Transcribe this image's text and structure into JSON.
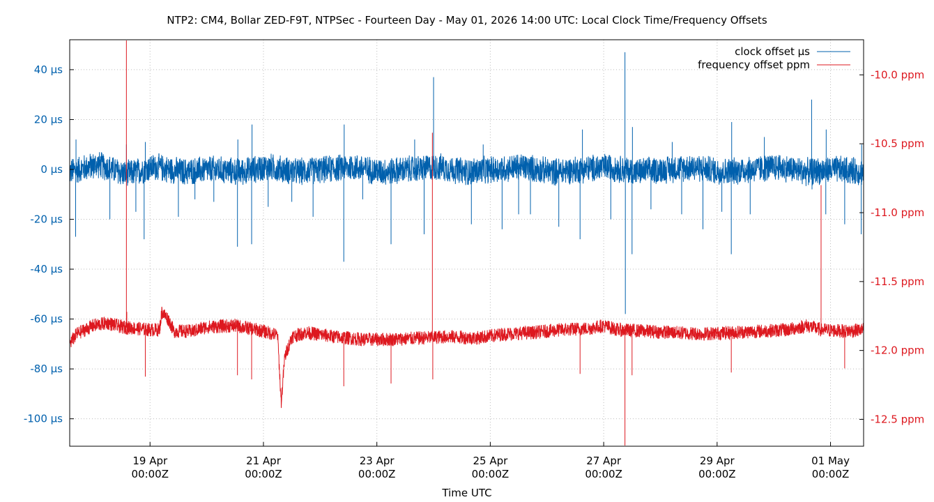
{
  "chart_data": {
    "type": "line",
    "title": "NTP2: CM4, Bollar ZED-F9T, NTPSec - Fourteen Day - May 01, 2026 14:00 UTC: Local Clock Time/Frequency Offsets",
    "xlabel": "Time UTC",
    "x_range": [
      "2026-04-17T14:00Z",
      "2026-05-01T14:00Z"
    ],
    "x_ticks": [
      {
        "date": "2026-04-19T00:00Z",
        "line1": "19 Apr",
        "line2": "00:00Z"
      },
      {
        "date": "2026-04-21T00:00Z",
        "line1": "21 Apr",
        "line2": "00:00Z"
      },
      {
        "date": "2026-04-23T00:00Z",
        "line1": "23 Apr",
        "line2": "00:00Z"
      },
      {
        "date": "2026-04-25T00:00Z",
        "line1": "25 Apr",
        "line2": "00:00Z"
      },
      {
        "date": "2026-04-27T00:00Z",
        "line1": "27 Apr",
        "line2": "00:00Z"
      },
      {
        "date": "2026-04-29T00:00Z",
        "line1": "29 Apr",
        "line2": "00:00Z"
      },
      {
        "date": "2026-05-01T00:00Z",
        "line1": "01 May",
        "line2": "00:00Z"
      }
    ],
    "y_left": {
      "range": [
        -111,
        52
      ],
      "ticks": [
        40,
        20,
        0,
        -20,
        -40,
        -60,
        -80,
        -100
      ],
      "tick_labels": [
        "40 µs",
        "20 µs",
        "0 µs",
        "-20 µs",
        "-40 µs",
        "-60 µs",
        "-80 µs",
        "-100 µs"
      ]
    },
    "y_right": {
      "range": [
        -12.695,
        -9.745
      ],
      "ticks": [
        -10.0,
        -10.5,
        -11.0,
        -11.5,
        -12.0,
        -12.5
      ],
      "tick_labels": [
        "-10.0 ppm",
        "-10.5 ppm",
        "-11.0 ppm",
        "-11.5 ppm",
        "-12.0 ppm",
        "-12.5 ppm"
      ]
    },
    "grid": true,
    "legend_position": "top-right",
    "series": [
      {
        "name": "clock offset µs",
        "axis": "left",
        "color": "#0060ad",
        "baseline_band": [
          -6,
          6
        ],
        "points": [
          [
            "2026-04-17T14:00Z",
            -1
          ],
          [
            "2026-04-18T02:00Z",
            2
          ],
          [
            "2026-04-18T14:00Z",
            -2
          ],
          [
            "2026-04-19T02:00Z",
            1
          ],
          [
            "2026-04-19T14:00Z",
            -1
          ],
          [
            "2026-04-20T02:00Z",
            0
          ],
          [
            "2026-04-20T14:00Z",
            -1
          ],
          [
            "2026-04-21T02:00Z",
            1
          ],
          [
            "2026-04-21T14:00Z",
            -1
          ],
          [
            "2026-04-22T02:00Z",
            0
          ],
          [
            "2026-04-22T14:00Z",
            1
          ],
          [
            "2026-04-23T02:00Z",
            -1
          ],
          [
            "2026-04-23T14:00Z",
            0
          ],
          [
            "2026-04-24T02:00Z",
            1
          ],
          [
            "2026-04-24T14:00Z",
            -1
          ],
          [
            "2026-04-25T02:00Z",
            0
          ],
          [
            "2026-04-25T14:00Z",
            1
          ],
          [
            "2026-04-26T02:00Z",
            -1
          ],
          [
            "2026-04-26T14:00Z",
            0
          ],
          [
            "2026-04-27T02:00Z",
            1
          ],
          [
            "2026-04-27T14:00Z",
            -1
          ],
          [
            "2026-04-28T02:00Z",
            0
          ],
          [
            "2026-04-28T14:00Z",
            1
          ],
          [
            "2026-04-29T02:00Z",
            -1
          ],
          [
            "2026-04-29T14:00Z",
            0
          ],
          [
            "2026-04-30T02:00Z",
            1
          ],
          [
            "2026-04-30T14:00Z",
            -1
          ],
          [
            "2026-05-01T02:00Z",
            0
          ],
          [
            "2026-05-01T14:00Z",
            -1
          ]
        ],
        "spikes": [
          [
            "2026-04-17T16:30Z",
            -27
          ],
          [
            "2026-04-17T16:40Z",
            12
          ],
          [
            "2026-04-18T07:00Z",
            -20
          ],
          [
            "2026-04-18T14:00Z",
            10
          ],
          [
            "2026-04-18T18:00Z",
            -17
          ],
          [
            "2026-04-18T21:30Z",
            -28
          ],
          [
            "2026-04-18T22:00Z",
            11
          ],
          [
            "2026-04-19T12:00Z",
            -19
          ],
          [
            "2026-04-19T19:00Z",
            -12
          ],
          [
            "2026-04-20T03:00Z",
            -13
          ],
          [
            "2026-04-20T13:00Z",
            -31
          ],
          [
            "2026-04-20T13:10Z",
            12
          ],
          [
            "2026-04-20T19:00Z",
            -30
          ],
          [
            "2026-04-20T19:10Z",
            18
          ],
          [
            "2026-04-21T02:00Z",
            -15
          ],
          [
            "2026-04-21T12:00Z",
            -13
          ],
          [
            "2026-04-21T21:00Z",
            -19
          ],
          [
            "2026-04-22T10:00Z",
            -37
          ],
          [
            "2026-04-22T10:10Z",
            18
          ],
          [
            "2026-04-22T18:00Z",
            -12
          ],
          [
            "2026-04-23T06:00Z",
            -30
          ],
          [
            "2026-04-23T16:00Z",
            12
          ],
          [
            "2026-04-23T20:00Z",
            -26
          ],
          [
            "2026-04-24T00:00Z",
            37
          ],
          [
            "2026-04-24T16:00Z",
            -22
          ],
          [
            "2026-04-24T21:00Z",
            10
          ],
          [
            "2026-04-25T05:00Z",
            -24
          ],
          [
            "2026-04-25T12:00Z",
            -18
          ],
          [
            "2026-04-25T17:00Z",
            -18
          ],
          [
            "2026-04-26T05:00Z",
            -23
          ],
          [
            "2026-04-26T14:00Z",
            -28
          ],
          [
            "2026-04-26T15:00Z",
            16
          ],
          [
            "2026-04-27T03:00Z",
            -20
          ],
          [
            "2026-04-27T09:00Z",
            47
          ],
          [
            "2026-04-27T09:10Z",
            -58
          ],
          [
            "2026-04-27T12:00Z",
            -34
          ],
          [
            "2026-04-27T12:10Z",
            17
          ],
          [
            "2026-04-27T20:00Z",
            -16
          ],
          [
            "2026-04-28T05:00Z",
            11
          ],
          [
            "2026-04-28T09:00Z",
            -18
          ],
          [
            "2026-04-28T18:00Z",
            -24
          ],
          [
            "2026-04-29T02:00Z",
            -17
          ],
          [
            "2026-04-29T06:00Z",
            -34
          ],
          [
            "2026-04-29T06:10Z",
            19
          ],
          [
            "2026-04-29T14:00Z",
            -18
          ],
          [
            "2026-04-29T20:00Z",
            13
          ],
          [
            "2026-04-30T16:00Z",
            28
          ],
          [
            "2026-04-30T16:10Z",
            -8
          ],
          [
            "2026-04-30T22:00Z",
            -18
          ],
          [
            "2026-04-30T22:10Z",
            16
          ],
          [
            "2026-05-01T06:00Z",
            -22
          ],
          [
            "2026-05-01T13:00Z",
            -26
          ],
          [
            "2026-05-01T13:10Z",
            10
          ]
        ]
      },
      {
        "name": "frequency offset ppm",
        "axis": "right",
        "color": "#dd181f",
        "noise_amplitude_ppm": 0.05,
        "points": [
          [
            "2026-04-17T14:00Z",
            -11.95
          ],
          [
            "2026-04-17T17:00Z",
            -11.88
          ],
          [
            "2026-04-18T00:00Z",
            -11.82
          ],
          [
            "2026-04-18T06:00Z",
            -11.8
          ],
          [
            "2026-04-18T12:00Z",
            -11.83
          ],
          [
            "2026-04-19T00:00Z",
            -11.85
          ],
          [
            "2026-04-19T04:00Z",
            -11.85
          ],
          [
            "2026-04-19T05:00Z",
            -11.72
          ],
          [
            "2026-04-19T08:00Z",
            -11.78
          ],
          [
            "2026-04-19T10:00Z",
            -11.86
          ],
          [
            "2026-04-19T18:00Z",
            -11.86
          ],
          [
            "2026-04-20T00:00Z",
            -11.83
          ],
          [
            "2026-04-20T12:00Z",
            -11.82
          ],
          [
            "2026-04-21T00:00Z",
            -11.86
          ],
          [
            "2026-04-21T06:00Z",
            -11.89
          ],
          [
            "2026-04-21T07:30Z",
            -12.38
          ],
          [
            "2026-04-21T09:00Z",
            -12.05
          ],
          [
            "2026-04-21T12:00Z",
            -11.9
          ],
          [
            "2026-04-21T18:00Z",
            -11.87
          ],
          [
            "2026-04-22T06:00Z",
            -11.9
          ],
          [
            "2026-04-22T18:00Z",
            -11.92
          ],
          [
            "2026-04-23T06:00Z",
            -11.92
          ],
          [
            "2026-04-23T18:00Z",
            -11.91
          ],
          [
            "2026-04-24T06:00Z",
            -11.9
          ],
          [
            "2026-04-24T18:00Z",
            -11.91
          ],
          [
            "2026-04-25T06:00Z",
            -11.88
          ],
          [
            "2026-04-25T18:00Z",
            -11.87
          ],
          [
            "2026-04-26T06:00Z",
            -11.85
          ],
          [
            "2026-04-26T18:00Z",
            -11.84
          ],
          [
            "2026-04-27T00:00Z",
            -11.82
          ],
          [
            "2026-04-27T06:00Z",
            -11.85
          ],
          [
            "2026-04-27T18:00Z",
            -11.86
          ],
          [
            "2026-04-28T06:00Z",
            -11.87
          ],
          [
            "2026-04-28T18:00Z",
            -11.88
          ],
          [
            "2026-04-29T06:00Z",
            -11.87
          ],
          [
            "2026-04-29T18:00Z",
            -11.86
          ],
          [
            "2026-04-30T06:00Z",
            -11.85
          ],
          [
            "2026-04-30T14:00Z",
            -11.82
          ],
          [
            "2026-04-30T20:00Z",
            -11.85
          ],
          [
            "2026-05-01T06:00Z",
            -11.86
          ],
          [
            "2026-05-01T14:00Z",
            -11.85
          ]
        ],
        "spikes": [
          [
            "2026-04-18T14:00Z",
            -9.75
          ],
          [
            "2026-04-18T14:10Z",
            -11.72
          ],
          [
            "2026-04-18T22:00Z",
            -12.19
          ],
          [
            "2026-04-20T13:00Z",
            -12.18
          ],
          [
            "2026-04-20T19:00Z",
            -12.21
          ],
          [
            "2026-04-22T10:00Z",
            -12.26
          ],
          [
            "2026-04-23T06:00Z",
            -12.24
          ],
          [
            "2026-04-23T23:30Z",
            -10.42
          ],
          [
            "2026-04-23T23:40Z",
            -12.21
          ],
          [
            "2026-04-26T14:00Z",
            -12.17
          ],
          [
            "2026-04-27T09:00Z",
            -12.69
          ],
          [
            "2026-04-27T12:00Z",
            -12.18
          ],
          [
            "2026-04-29T06:00Z",
            -12.16
          ],
          [
            "2026-04-30T20:00Z",
            -10.8
          ],
          [
            "2026-05-01T06:00Z",
            -12.13
          ]
        ]
      }
    ]
  }
}
